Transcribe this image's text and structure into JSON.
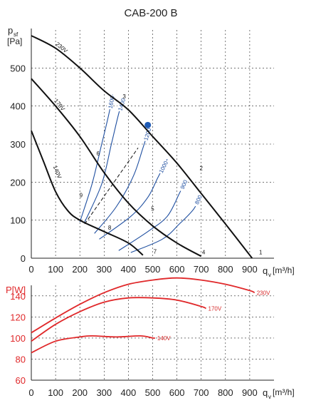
{
  "colors": {
    "black": "#111111",
    "blue": "#1f4fa0",
    "red": "#e0282a",
    "grid": "#222222",
    "marker": "#1f5bb5"
  },
  "chart_data": [
    {
      "type": "line",
      "title": "CAB-200 B",
      "ylabel_main": "p",
      "ylabel_sub": "sf",
      "ylabel_unit": "[Pa]",
      "xlabel_main": "q",
      "xlabel_sub": "v",
      "xlabel_unit": "[m³/h]",
      "xlim": [
        0,
        1000
      ],
      "ylim": [
        0,
        600
      ],
      "grid": true,
      "xticks": [
        0,
        100,
        200,
        300,
        400,
        500,
        600,
        700,
        800,
        900
      ],
      "yticks": [
        0,
        100,
        200,
        300,
        400,
        500
      ],
      "fan_curves": [
        {
          "name": "230V",
          "label_pos": [
            120,
            550
          ],
          "points": [
            [
              0,
              585
            ],
            [
              100,
              552
            ],
            [
              200,
              500
            ],
            [
              300,
              440
            ],
            [
              400,
              390
            ],
            [
              500,
              320
            ],
            [
              600,
              250
            ],
            [
              700,
              170
            ],
            [
              800,
              90
            ],
            [
              910,
              0
            ]
          ]
        },
        {
          "name": "170V",
          "label_pos": [
            110,
            400
          ],
          "points": [
            [
              0,
              472
            ],
            [
              100,
              400
            ],
            [
              200,
              320
            ],
            [
              300,
              225
            ],
            [
              400,
              145
            ],
            [
              500,
              85
            ],
            [
              600,
              40
            ],
            [
              700,
              5
            ]
          ]
        },
        {
          "name": "140V",
          "label_pos": [
            100,
            225
          ],
          "points": [
            [
              0,
              335
            ],
            [
              50,
              255
            ],
            [
              100,
              175
            ],
            [
              150,
              125
            ],
            [
              200,
              100
            ],
            [
              300,
              70
            ],
            [
              400,
              40
            ],
            [
              460,
              8
            ]
          ]
        }
      ],
      "system_curves": [
        {
          "name": "1600",
          "points": [
            [
              200,
              95
            ],
            [
              250,
              195
            ],
            [
              290,
              300
            ],
            [
              320,
              380
            ],
            [
              335,
              430
            ]
          ]
        },
        {
          "name": "1400",
          "points": [
            [
              220,
              95
            ],
            [
              290,
              195
            ],
            [
              330,
              300
            ],
            [
              360,
              380
            ],
            [
              380,
              420
            ]
          ]
        },
        {
          "name": "1200",
          "points": [
            [
              260,
              65
            ],
            [
              350,
              135
            ],
            [
              420,
              215
            ],
            [
              460,
              290
            ],
            [
              490,
              350
            ]
          ]
        },
        {
          "name": "1000",
          "points": [
            [
              280,
              50
            ],
            [
              410,
              110
            ],
            [
              480,
              160
            ],
            [
              520,
              210
            ],
            [
              560,
              260
            ]
          ]
        },
        {
          "name": "900",
          "points": [
            [
              360,
              20
            ],
            [
              480,
              70
            ],
            [
              560,
              110
            ],
            [
              610,
              170
            ],
            [
              640,
              210
            ]
          ]
        },
        {
          "name": "800",
          "points": [
            [
              410,
              15
            ],
            [
              540,
              50
            ],
            [
              610,
              90
            ],
            [
              670,
              130
            ],
            [
              700,
              170
            ]
          ]
        }
      ],
      "dashed_line": {
        "points": [
          [
            220,
            90
          ],
          [
            440,
            290
          ]
        ]
      },
      "operating_point": {
        "x": 480,
        "y": 350
      },
      "point_labels": [
        {
          "text": "1",
          "x": 945,
          "y": 10
        },
        {
          "text": "2",
          "x": 700,
          "y": 232
        },
        {
          "text": "3",
          "x": 383,
          "y": 420
        },
        {
          "text": "4",
          "x": 710,
          "y": 10
        },
        {
          "text": "5",
          "x": 500,
          "y": 125
        },
        {
          "text": "6",
          "x": 275,
          "y": 270
        },
        {
          "text": "7",
          "x": 510,
          "y": 12
        },
        {
          "text": "8",
          "x": 323,
          "y": 75
        },
        {
          "text": "9",
          "x": 205,
          "y": 160
        }
      ]
    },
    {
      "type": "line",
      "ylabel": "P[W]",
      "xlabel_main": "q",
      "xlabel_sub": "v",
      "xlabel_unit": "[m³/h]",
      "xlim": [
        0,
        1000
      ],
      "ylim": [
        60,
        150
      ],
      "grid": true,
      "xticks": [
        0,
        100,
        200,
        300,
        400,
        500,
        600,
        700,
        800,
        900
      ],
      "yticks": [
        60,
        80,
        100,
        120,
        140
      ],
      "series": [
        {
          "name": "230V",
          "points": [
            [
              0,
              105
            ],
            [
              100,
              119
            ],
            [
              200,
              132
            ],
            [
              300,
              143
            ],
            [
              400,
              151
            ],
            [
              500,
              155
            ],
            [
              600,
              157
            ],
            [
              700,
              155
            ],
            [
              800,
              151
            ],
            [
              900,
              145
            ],
            [
              920,
              143
            ]
          ]
        },
        {
          "name": "170V",
          "points": [
            [
              0,
              97
            ],
            [
              100,
              113
            ],
            [
              200,
              125
            ],
            [
              300,
              134
            ],
            [
              400,
              138
            ],
            [
              500,
              138
            ],
            [
              600,
              136
            ],
            [
              700,
              130
            ],
            [
              720,
              128
            ]
          ]
        },
        {
          "name": "140V",
          "points": [
            [
              0,
              86
            ],
            [
              100,
              97
            ],
            [
              200,
              101
            ],
            [
              250,
              102
            ],
            [
              350,
              101
            ],
            [
              450,
              102
            ],
            [
              500,
              100
            ],
            [
              510,
              100
            ]
          ]
        }
      ]
    }
  ]
}
